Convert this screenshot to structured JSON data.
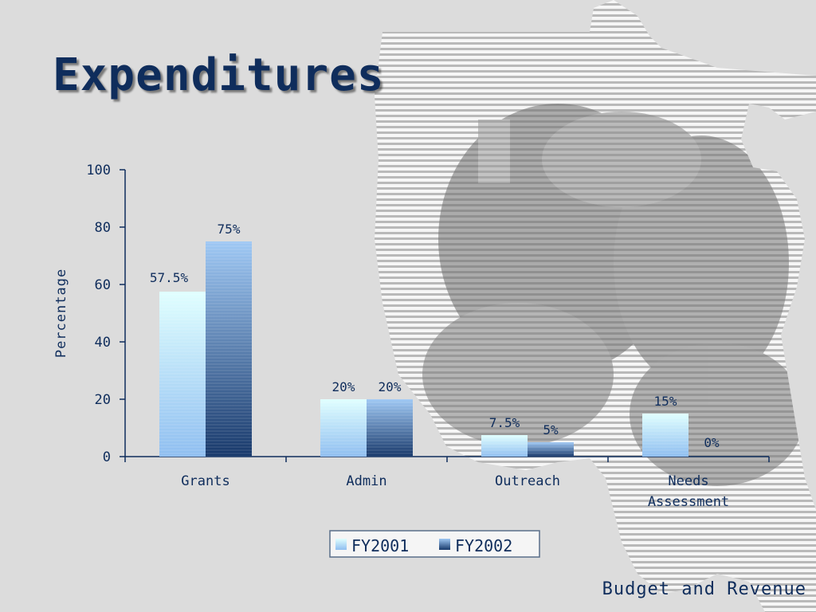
{
  "slide": {
    "title": "Expenditures",
    "footer": "Budget and Revenue"
  },
  "colors": {
    "title": "#0f2d5c",
    "background": "#dcdcdc",
    "fy2001_light": "#e0ffff",
    "fy2001_dark": "#8fbef0",
    "fy2002_light": "#9fc8f4",
    "fy2002_dark": "#17386a",
    "map_stripes": "#f4f4f4",
    "photo_overlay": "#7a7a7a"
  },
  "chart_data": {
    "type": "bar",
    "ylabel": "Percentage",
    "xlabel": "",
    "ylim": [
      0,
      100
    ],
    "yticks": [
      "0",
      "20",
      "40",
      "60",
      "80",
      "100"
    ],
    "categories": [
      "Grants",
      "Admin",
      "Outreach",
      "Needs Assessment"
    ],
    "category_lines": [
      [
        "Grants"
      ],
      [
        "Admin"
      ],
      [
        "Outreach"
      ],
      [
        "Needs",
        "Assessment"
      ]
    ],
    "series": [
      {
        "name": "FY2001",
        "values": [
          57.5,
          20,
          7.5,
          15
        ],
        "labels": [
          "57.5%",
          "20%",
          "7.5%",
          "15%"
        ]
      },
      {
        "name": "FY2002",
        "values": [
          75,
          20,
          5,
          0
        ],
        "labels": [
          "75%",
          "20%",
          "5%",
          "0%"
        ]
      }
    ],
    "legend_position": "bottom",
    "grid": false
  }
}
